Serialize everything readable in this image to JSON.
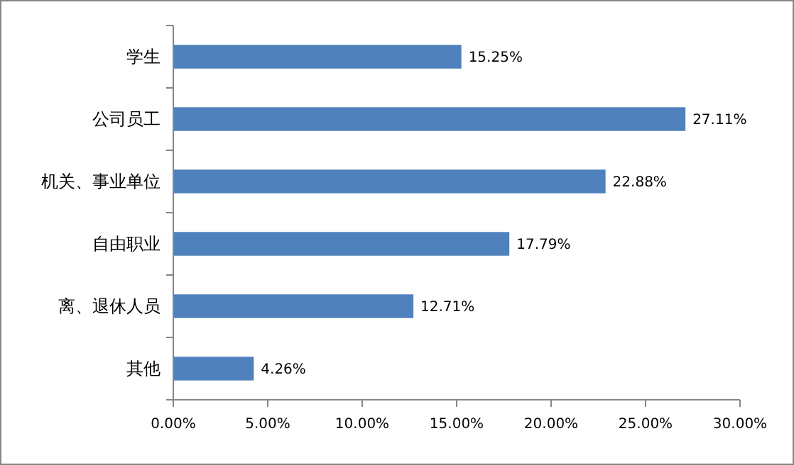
{
  "chart_data": {
    "type": "bar",
    "orientation": "horizontal",
    "categories": [
      "学生",
      "公司员工",
      "机关、事业单位",
      "自由职业",
      "离、退休人员",
      "其他"
    ],
    "values": [
      15.25,
      27.11,
      22.88,
      17.79,
      12.71,
      4.26
    ],
    "value_labels": [
      "15.25%",
      "27.11%",
      "22.88%",
      "17.79%",
      "12.71%",
      "4.26%"
    ],
    "color": "#4f81bd",
    "xlim": [
      0,
      30
    ],
    "xticks": [
      {
        "value": 0,
        "label": "0.00%"
      },
      {
        "value": 5,
        "label": "5.00%"
      },
      {
        "value": 10,
        "label": "10.00%"
      },
      {
        "value": 15,
        "label": "15.00%"
      },
      {
        "value": 20,
        "label": "20.00%"
      },
      {
        "value": 25,
        "label": "25.00%"
      },
      {
        "value": 30,
        "label": "30.00%"
      }
    ],
    "grid": false
  }
}
